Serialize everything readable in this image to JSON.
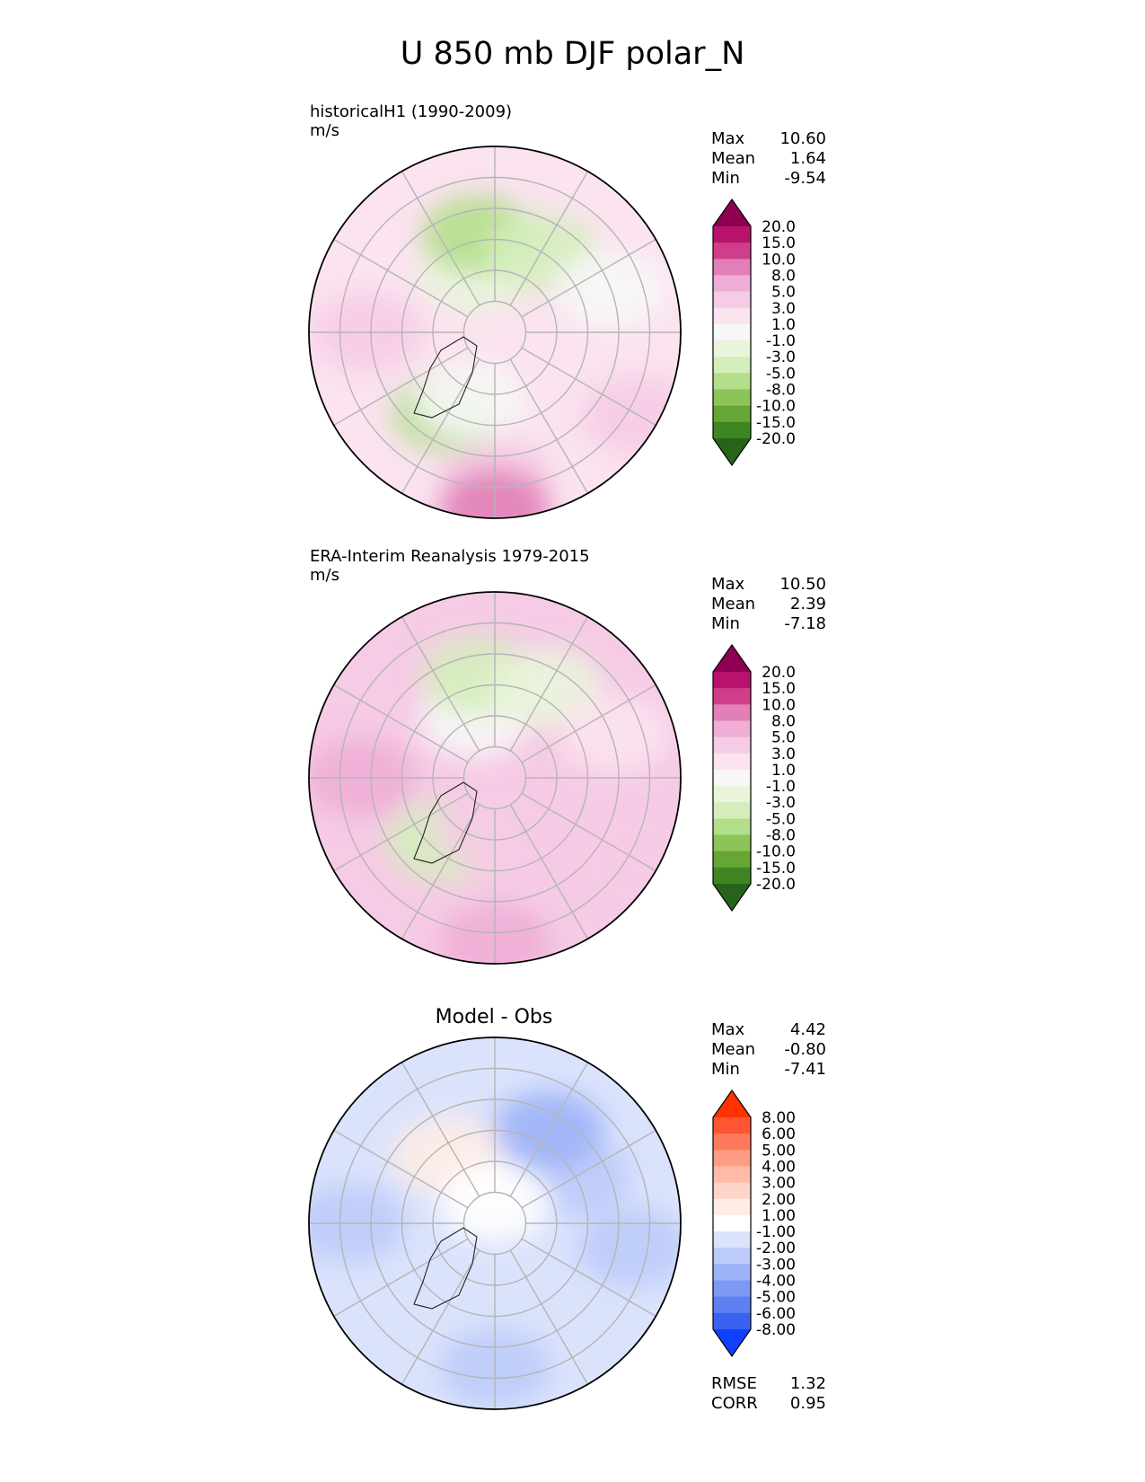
{
  "figure": {
    "title": "U 850 mb DJF polar_N"
  },
  "panels": [
    {
      "id": "test",
      "title_line1": "historicalH1 (1990-2009)",
      "title_line2": "m/s",
      "stats": [
        {
          "label": "Max",
          "value": "10.60"
        },
        {
          "label": "Mean",
          "value": "1.64"
        },
        {
          "label": "Min",
          "value": "-9.54"
        }
      ]
    },
    {
      "id": "reference",
      "title_line1": "ERA-Interim Reanalysis 1979-2015",
      "title_line2": "m/s",
      "stats": [
        {
          "label": "Max",
          "value": "10.50"
        },
        {
          "label": "Mean",
          "value": "2.39"
        },
        {
          "label": "Min",
          "value": "-7.18"
        }
      ]
    },
    {
      "id": "difference",
      "title_line1": "Model - Obs",
      "stats": [
        {
          "label": "Max",
          "value": "4.42"
        },
        {
          "label": "Mean",
          "value": "-0.80"
        },
        {
          "label": "Min",
          "value": "-7.41"
        }
      ],
      "metrics": [
        {
          "label": "RMSE",
          "value": "1.32"
        },
        {
          "label": "CORR",
          "value": "0.95"
        }
      ]
    }
  ],
  "chart_data": [
    {
      "type": "heatmap",
      "projection": "north-polar-stereographic",
      "title": "historicalH1 (1990-2009)",
      "units": "m/s",
      "colorbar": {
        "levels": [
          "20.0",
          "15.0",
          "10.0",
          "8.0",
          "5.0",
          "3.0",
          "1.0",
          "-1.0",
          "-3.0",
          "-5.0",
          "-8.0",
          "-10.0",
          "-15.0",
          "-20.0"
        ],
        "colors": [
          "#8e0152",
          "#b8136c",
          "#d03d8b",
          "#e17fb6",
          "#eeaed5",
          "#f6cbe6",
          "#fbe3f0",
          "#f7f7f7",
          "#e9f5da",
          "#d4eebb",
          "#b3de8a",
          "#8dc45a",
          "#66a634",
          "#3f8623",
          "#276419"
        ],
        "extend": "both"
      },
      "fields": {
        "base_level": "3.0",
        "regions": [
          {
            "lon": 200,
            "colat": 30,
            "value": "-1.0"
          },
          {
            "lon": 190,
            "colat": 48,
            "value": "-5.0"
          },
          {
            "lon": 150,
            "colat": 45,
            "value": "-3.0"
          },
          {
            "lon": 110,
            "colat": 60,
            "value": "1.0"
          },
          {
            "lon": 0,
            "colat": 70,
            "value": "5.0"
          },
          {
            "lon": 0,
            "colat": 85,
            "value": "10.0"
          },
          {
            "lon": 270,
            "colat": 62,
            "value": "5.0"
          },
          {
            "lon": 60,
            "colat": 80,
            "value": "5.0"
          },
          {
            "lon": 330,
            "colat": 45,
            "value": "-5.0"
          },
          {
            "lon": 340,
            "colat": 35,
            "value": "1.0"
          }
        ]
      }
    },
    {
      "type": "heatmap",
      "projection": "north-polar-stereographic",
      "title": "ERA-Interim Reanalysis 1979-2015",
      "units": "m/s",
      "colorbar": {
        "levels": [
          "20.0",
          "15.0",
          "10.0",
          "8.0",
          "5.0",
          "3.0",
          "1.0",
          "-1.0",
          "-3.0",
          "-5.0",
          "-8.0",
          "-10.0",
          "-15.0",
          "-20.0"
        ],
        "colors": [
          "#8e0152",
          "#b8136c",
          "#d03d8b",
          "#e17fb6",
          "#eeaed5",
          "#f6cbe6",
          "#fbe3f0",
          "#f7f7f7",
          "#e9f5da",
          "#d4eebb",
          "#b3de8a",
          "#8dc45a",
          "#66a634",
          "#3f8623",
          "#276419"
        ],
        "extend": "both"
      },
      "fields": {
        "base_level": "5.0",
        "regions": [
          {
            "lon": 200,
            "colat": 30,
            "value": "1.0"
          },
          {
            "lon": 190,
            "colat": 50,
            "value": "-3.0"
          },
          {
            "lon": 150,
            "colat": 50,
            "value": "-1.0"
          },
          {
            "lon": 110,
            "colat": 62,
            "value": "3.0"
          },
          {
            "lon": 0,
            "colat": 80,
            "value": "8.0"
          },
          {
            "lon": 270,
            "colat": 65,
            "value": "8.0"
          },
          {
            "lon": 60,
            "colat": 80,
            "value": "5.0"
          },
          {
            "lon": 320,
            "colat": 40,
            "value": "-3.0"
          },
          {
            "lon": 355,
            "colat": 25,
            "value": "5.0"
          }
        ]
      }
    },
    {
      "type": "heatmap",
      "projection": "north-polar-stereographic",
      "title": "Model - Obs",
      "units": "m/s",
      "colorbar": {
        "levels": [
          "8.00",
          "6.00",
          "5.00",
          "4.00",
          "3.00",
          "2.00",
          "1.00",
          "-1.00",
          "-2.00",
          "-3.00",
          "-4.00",
          "-5.00",
          "-6.00",
          "-8.00"
        ],
        "colors": [
          "#ff3300",
          "#ff5533",
          "#ff7a5c",
          "#ff9c85",
          "#ffbaa8",
          "#ffd4c8",
          "#ffece5",
          "#ffffff",
          "#dbe3fc",
          "#bccbf9",
          "#9db2f7",
          "#7d99f4",
          "#5d80f2",
          "#3a62ef",
          "#1040ff"
        ],
        "extend": "both"
      },
      "fields": {
        "base_level": "-1.00",
        "regions": [
          {
            "lon": 120,
            "colat": 45,
            "value": "-2.00"
          },
          {
            "lon": 150,
            "colat": 52,
            "value": "-3.00"
          },
          {
            "lon": 270,
            "colat": 70,
            "value": "-2.00"
          },
          {
            "lon": 0,
            "colat": 70,
            "value": "-2.00"
          },
          {
            "lon": 80,
            "colat": 68,
            "value": "-2.00"
          },
          {
            "lon": 215,
            "colat": 40,
            "value": "2.00"
          },
          {
            "lon": 180,
            "colat": 10,
            "value": "1.00"
          }
        ]
      }
    }
  ]
}
